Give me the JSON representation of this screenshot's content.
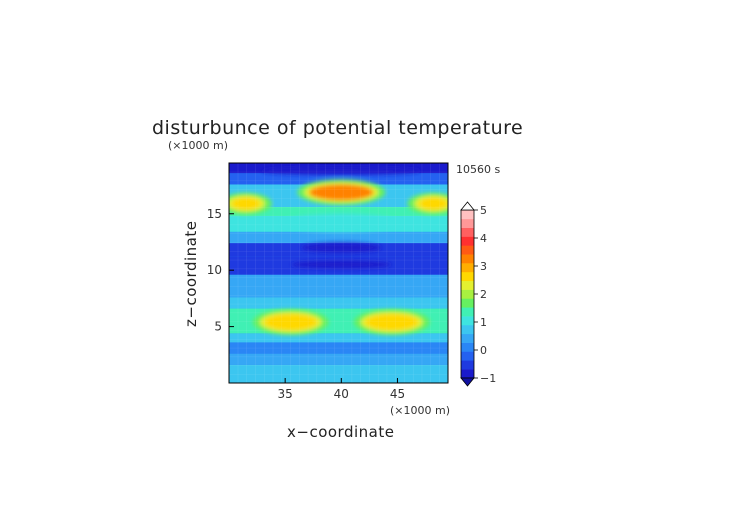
{
  "chart_data": {
    "type": "heatmap",
    "title": "disturbunce of potential temperature",
    "xlabel": "x−coordinate",
    "ylabel": "z−coordinate",
    "x_unit": "(×1000 m)",
    "y_unit": "(×1000 m)",
    "time_label": "10560 s",
    "xlim": [
      30,
      49.5
    ],
    "ylim": [
      0,
      19.5
    ],
    "x_ticks": [
      35,
      40,
      45
    ],
    "y_ticks": [
      5,
      10,
      15
    ],
    "colorbar": {
      "range": [
        -1,
        5
      ],
      "ticks": [
        -1,
        0,
        1,
        2,
        3,
        4,
        5
      ],
      "levels": [
        -1,
        -0.75,
        -0.5,
        -0.25,
        0,
        0.25,
        0.5,
        0.75,
        1,
        1.25,
        1.5,
        1.75,
        2,
        2.5,
        3,
        3.5,
        4,
        4.5,
        5
      ],
      "colors": [
        "#1a1acc",
        "#1f3ae0",
        "#2461f0",
        "#2a86f5",
        "#36a7f5",
        "#3cc6f0",
        "#3ee4e0",
        "#40f0b4",
        "#66f060",
        "#a8f040",
        "#e4f030",
        "#ffd800",
        "#ffae00",
        "#ff8200",
        "#ff5a14",
        "#ff3030",
        "#ff6060",
        "#ff9898",
        "#ffc0c0"
      ],
      "under_color": "#1010a0",
      "over_color": "#ffffff"
    },
    "features": [
      {
        "x": 40,
        "z": 16.9,
        "value": 2.8
      },
      {
        "x": 31.5,
        "z": 15.9,
        "value": 1.8
      },
      {
        "x": 48.2,
        "z": 15.9,
        "value": 1.8
      },
      {
        "x": 40,
        "z": 14.2,
        "value": 0.7
      },
      {
        "x": 35.5,
        "z": 5.4,
        "value": 1.8
      },
      {
        "x": 44.5,
        "z": 5.4,
        "value": 1.8
      },
      {
        "x": 40,
        "z": 12,
        "value": -0.8
      },
      {
        "x": 40,
        "z": 10.5,
        "value": -0.8
      },
      {
        "x": 40,
        "z": 18.8,
        "value": -0.9
      }
    ]
  }
}
